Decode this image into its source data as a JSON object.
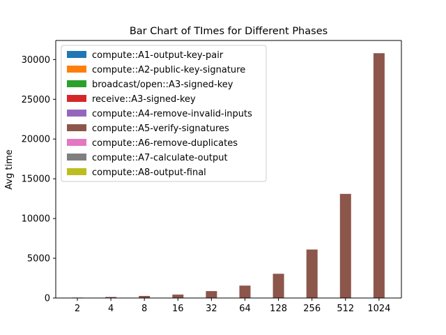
{
  "chart_data": {
    "type": "bar",
    "title": "Bar Chart of TImes for Different Phases",
    "xlabel": "",
    "ylabel": "Avg time",
    "categories": [
      "2",
      "4",
      "8",
      "16",
      "32",
      "64",
      "128",
      "256",
      "512",
      "1024"
    ],
    "ylim": [
      0,
      32400
    ],
    "yticks": [
      0,
      5000,
      10000,
      15000,
      20000,
      25000,
      30000
    ],
    "grid": false,
    "legend_position": "top-left",
    "series": [
      {
        "name": "compute::A1-output-key-pair",
        "color": "#1f77b4",
        "values": [
          0,
          0,
          0,
          0,
          0,
          0,
          0,
          0,
          0,
          0
        ]
      },
      {
        "name": "compute::A2-public-key-signature",
        "color": "#ff7f0e",
        "values": [
          0,
          0,
          0,
          0,
          0,
          0,
          0,
          0,
          0,
          0
        ]
      },
      {
        "name": "broadcast/open::A3-signed-key",
        "color": "#2ca02c",
        "values": [
          0,
          0,
          0,
          0,
          0,
          0,
          0,
          0,
          0,
          0
        ]
      },
      {
        "name": "receive::A3-signed-key",
        "color": "#d62728",
        "values": [
          0,
          0,
          0,
          0,
          0,
          0,
          0,
          0,
          0,
          0
        ]
      },
      {
        "name": "compute::A4-remove-invalid-inputs",
        "color": "#9467bd",
        "values": [
          0,
          0,
          0,
          0,
          0,
          0,
          0,
          0,
          0,
          0
        ]
      },
      {
        "name": "compute::A5-verify-signatures",
        "color": "#8c564b",
        "values": [
          60,
          130,
          260,
          430,
          870,
          1560,
          3050,
          6100,
          13100,
          30800
        ]
      },
      {
        "name": "compute::A6-remove-duplicates",
        "color": "#e377c2",
        "values": [
          0,
          0,
          0,
          0,
          0,
          0,
          0,
          0,
          0,
          0
        ]
      },
      {
        "name": "compute::A7-calculate-output",
        "color": "#7f7f7f",
        "values": [
          0,
          0,
          0,
          0,
          0,
          0,
          0,
          0,
          0,
          0
        ]
      },
      {
        "name": "compute::A8-output-final",
        "color": "#bcbd22",
        "values": [
          0,
          0,
          0,
          0,
          0,
          0,
          0,
          0,
          0,
          0
        ]
      }
    ]
  }
}
